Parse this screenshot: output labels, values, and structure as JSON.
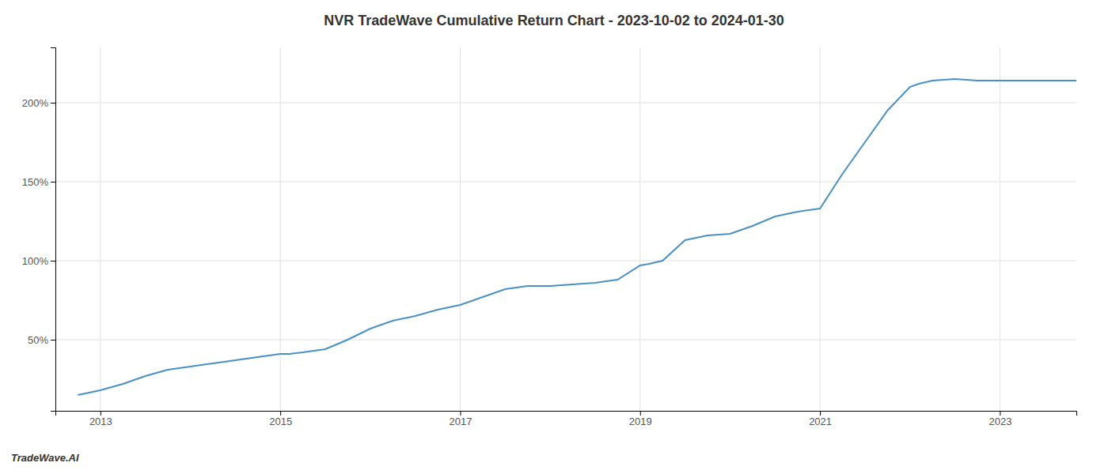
{
  "chart_data": {
    "type": "line",
    "title": "NVR TradeWave Cumulative Return Chart - 2023-10-02 to 2024-01-30",
    "annotations": [
      "TradeWave.AI"
    ],
    "color": "#4a90c4",
    "grid": true,
    "x": [
      2012.75,
      2013.0,
      2013.25,
      2013.5,
      2013.75,
      2014.0,
      2014.25,
      2014.5,
      2014.75,
      2015.0,
      2015.1,
      2015.25,
      2015.5,
      2015.75,
      2016.0,
      2016.25,
      2016.5,
      2016.75,
      2017.0,
      2017.25,
      2017.5,
      2017.75,
      2018.0,
      2018.25,
      2018.5,
      2018.75,
      2019.0,
      2019.1,
      2019.25,
      2019.5,
      2019.75,
      2020.0,
      2020.25,
      2020.5,
      2020.75,
      2021.0,
      2021.25,
      2021.5,
      2021.75,
      2022.0,
      2022.1,
      2022.25,
      2022.5,
      2022.75,
      2023.0,
      2023.5,
      2023.85
    ],
    "values": [
      15,
      18,
      22,
      27,
      31,
      33,
      35,
      37,
      39,
      41,
      41,
      42,
      44,
      50,
      57,
      62,
      65,
      69,
      72,
      77,
      82,
      84,
      84,
      85,
      86,
      88,
      97,
      98,
      100,
      113,
      116,
      117,
      122,
      128,
      131,
      133,
      155,
      175,
      195,
      210,
      212,
      214,
      215,
      214,
      214,
      214,
      214
    ],
    "xlim": [
      2012.5,
      2023.85
    ],
    "ylim": [
      5,
      235
    ],
    "xticks": [
      2013,
      2015,
      2017,
      2019,
      2021,
      2023
    ],
    "yticks": [
      {
        "value": 50,
        "label": "50%"
      },
      {
        "value": 100,
        "label": "100%"
      },
      {
        "value": 150,
        "label": "150%"
      },
      {
        "value": 200,
        "label": "200%"
      }
    ]
  }
}
